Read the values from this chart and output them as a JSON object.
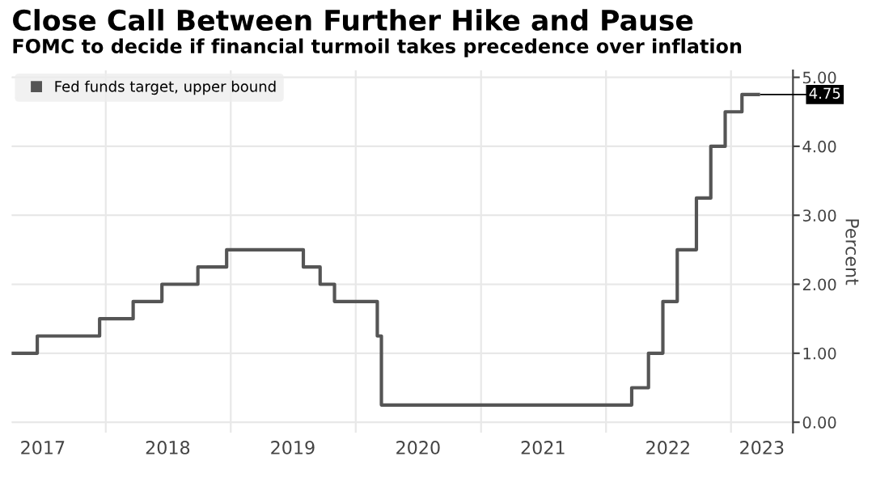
{
  "chart_data": {
    "type": "step",
    "title": "Close Call Between Further Hike and Pause",
    "subtitle": "FOMC to decide if financial turmoil takes precedence over inflation",
    "ylabel": "Percent",
    "x": [
      "2017-04-01",
      "2017-06-15",
      "2017-12-14",
      "2018-03-22",
      "2018-06-14",
      "2018-09-27",
      "2018-12-20",
      "2019-08-01",
      "2019-09-19",
      "2019-10-31",
      "2020-03-04",
      "2020-03-16",
      "2022-03-17",
      "2022-05-05",
      "2022-06-16",
      "2022-07-28",
      "2022-09-22",
      "2022-11-03",
      "2022-12-15",
      "2023-02-02",
      "2023-03-22"
    ],
    "series": [
      {
        "name": "Fed funds target, upper bound",
        "color": "#555555",
        "values": [
          1.0,
          1.25,
          1.5,
          1.75,
          2.0,
          2.25,
          2.5,
          2.25,
          2.0,
          1.75,
          1.25,
          0.25,
          0.5,
          1.0,
          1.75,
          2.5,
          3.25,
          4.0,
          4.5,
          4.75,
          4.75
        ]
      }
    ],
    "annotations": [
      {
        "text": "4.75",
        "x": "2023-03-22",
        "y": 4.75
      }
    ],
    "xlim": [
      "2017-04-01",
      "2023-07-01"
    ],
    "xticks": [
      {
        "value": "2017-07-01",
        "label": "2017"
      },
      {
        "value": "2018-01-01",
        "label": null
      },
      {
        "value": "2018-07-01",
        "label": "2018"
      },
      {
        "value": "2019-01-01",
        "label": null
      },
      {
        "value": "2019-07-01",
        "label": "2019"
      },
      {
        "value": "2020-01-01",
        "label": null
      },
      {
        "value": "2020-07-01",
        "label": "2020"
      },
      {
        "value": "2021-01-01",
        "label": null
      },
      {
        "value": "2021-07-01",
        "label": "2021"
      },
      {
        "value": "2022-01-01",
        "label": null
      },
      {
        "value": "2022-07-01",
        "label": "2022"
      },
      {
        "value": "2023-01-01",
        "label": null
      },
      {
        "value": "2023-04-01",
        "label": "2023"
      }
    ],
    "ylim": [
      -0.15,
      5.1
    ],
    "yticks": [
      {
        "value": 0,
        "label": "0.00"
      },
      {
        "value": 1,
        "label": "1.00"
      },
      {
        "value": 2,
        "label": "2.00"
      },
      {
        "value": 3,
        "label": "3.00"
      },
      {
        "value": 4,
        "label": "4.00"
      },
      {
        "value": 5,
        "label": "5.00"
      }
    ],
    "grid": true,
    "legend": "top left",
    "marker": "none",
    "line_style": "solid"
  }
}
